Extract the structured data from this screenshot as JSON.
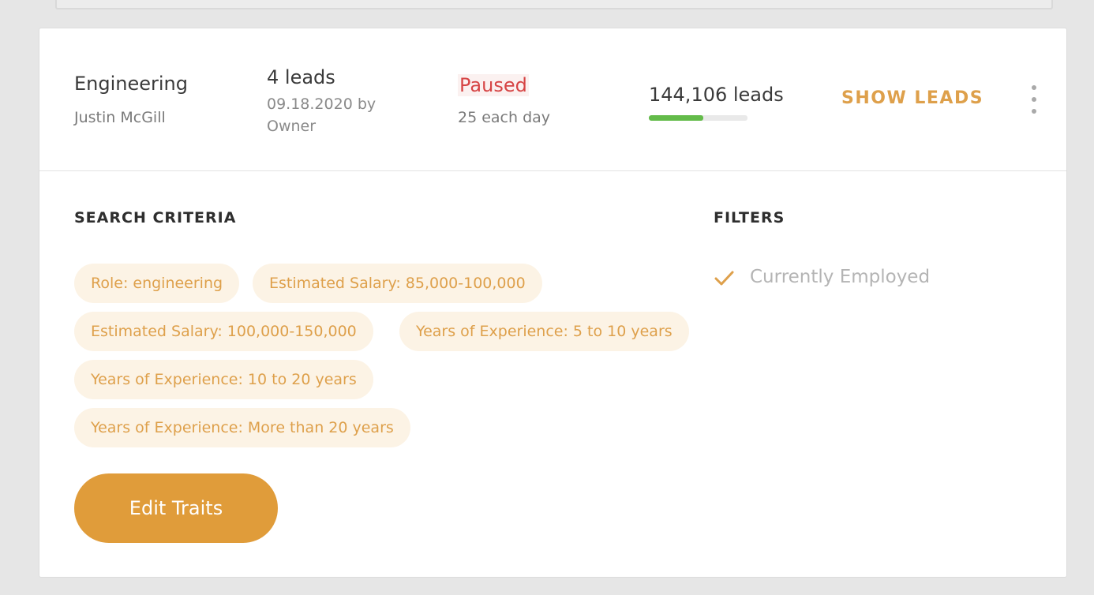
{
  "campaign": {
    "name": "Engineering",
    "owner": "Justin McGill",
    "leads_count": "4 leads",
    "created_line": "09.18.2020 by Owner",
    "status": "Paused",
    "daily_limit": "25 each day",
    "total_leads": "144,106 leads",
    "progress_fraction": 0.55,
    "show_leads_label": "SHOW LEADS",
    "menu_icon": "more-vertical-icon"
  },
  "criteria": {
    "heading": "SEARCH CRITERIA",
    "tags": [
      "Role: engineering",
      "Estimated Salary: 85,000-100,000",
      "Estimated Salary: 100,000-150,000",
      "Years of Experience: 5 to 10 years",
      "Years of Experience: 10 to 20 years",
      "Years of Experience: More than 20 years"
    ],
    "edit_button_label": "Edit Traits"
  },
  "filters": {
    "heading": "FILTERS",
    "items": [
      {
        "label": "Currently Employed",
        "icon": "check-icon"
      }
    ]
  },
  "colors": {
    "accent": "#e09c3a",
    "accent_text": "#dea04b",
    "tag_background": "#fcf3e5",
    "status_paused": "#d64545",
    "progress": "#63bb4a"
  }
}
